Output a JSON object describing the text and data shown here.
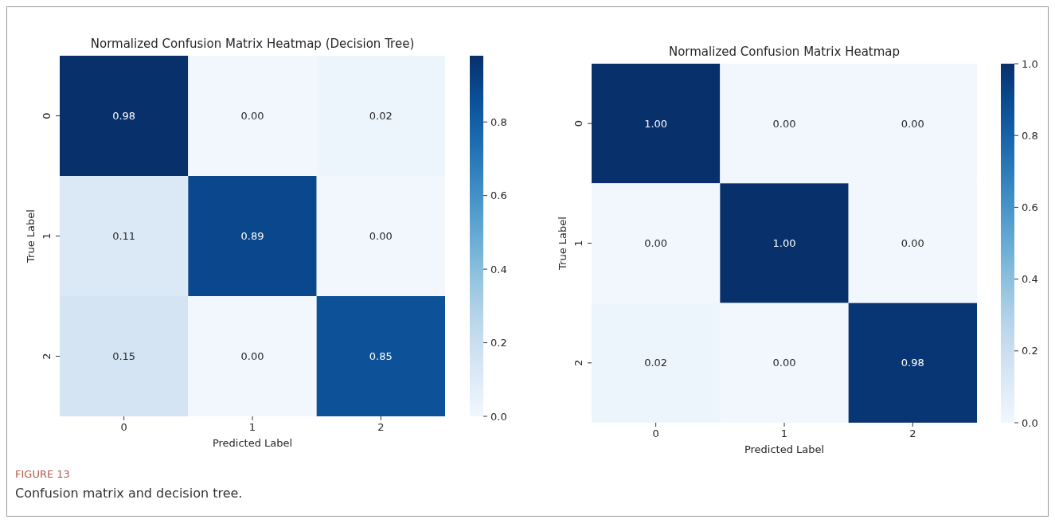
{
  "chart_data": [
    {
      "type": "heatmap",
      "title": "Normalized Confusion Matrix Heatmap (Decision Tree)",
      "xlabel": "Predicted Label",
      "ylabel": "True Label",
      "categories": [
        "0",
        "1",
        "2"
      ],
      "y_categories": [
        "0",
        "1",
        "2"
      ],
      "cells": [
        [
          0.98,
          0.0,
          0.02
        ],
        [
          0.11,
          0.89,
          0.0
        ],
        [
          0.15,
          0.0,
          0.85
        ]
      ],
      "cell_labels": [
        [
          "0.98",
          "0.00",
          "0.02"
        ],
        [
          "0.11",
          "0.89",
          "0.00"
        ],
        [
          "0.15",
          "0.00",
          "0.85"
        ]
      ],
      "data_labels": true,
      "clim": [
        0,
        0.98
      ],
      "cticks": [
        {
          "value": 0,
          "label": "0.0"
        },
        {
          "value": 0.2,
          "label": "0.2"
        },
        {
          "value": 0.4,
          "label": "0.4"
        },
        {
          "value": 0.6,
          "label": "0.6"
        },
        {
          "value": 0.8,
          "label": "0.8"
        }
      ],
      "annotations": [
        "FIGURE 13",
        "Confusion matrix and decision tree."
      ]
    },
    {
      "type": "heatmap",
      "title": "Normalized Confusion Matrix Heatmap",
      "xlabel": "Predicted Label",
      "ylabel": "True Label",
      "categories": [
        "0",
        "1",
        "2"
      ],
      "y_categories": [
        "0",
        "1",
        "2"
      ],
      "cells": [
        [
          1.0,
          0.0,
          0.0
        ],
        [
          0.0,
          1.0,
          0.0
        ],
        [
          0.02,
          0.0,
          0.98
        ]
      ],
      "cell_labels": [
        [
          "1.00",
          "0.00",
          "0.00"
        ],
        [
          "0.00",
          "1.00",
          "0.00"
        ],
        [
          "0.02",
          "0.00",
          "0.98"
        ]
      ],
      "data_labels": true,
      "clim": [
        0,
        1
      ],
      "cticks": [
        {
          "value": 0,
          "label": "0.0"
        },
        {
          "value": 0.2,
          "label": "0.2"
        },
        {
          "value": 0.4,
          "label": "0.4"
        },
        {
          "value": 0.6,
          "label": "0.6"
        },
        {
          "value": 0.8,
          "label": "0.8"
        },
        {
          "value": 1,
          "label": "1.0"
        }
      ]
    }
  ]
}
